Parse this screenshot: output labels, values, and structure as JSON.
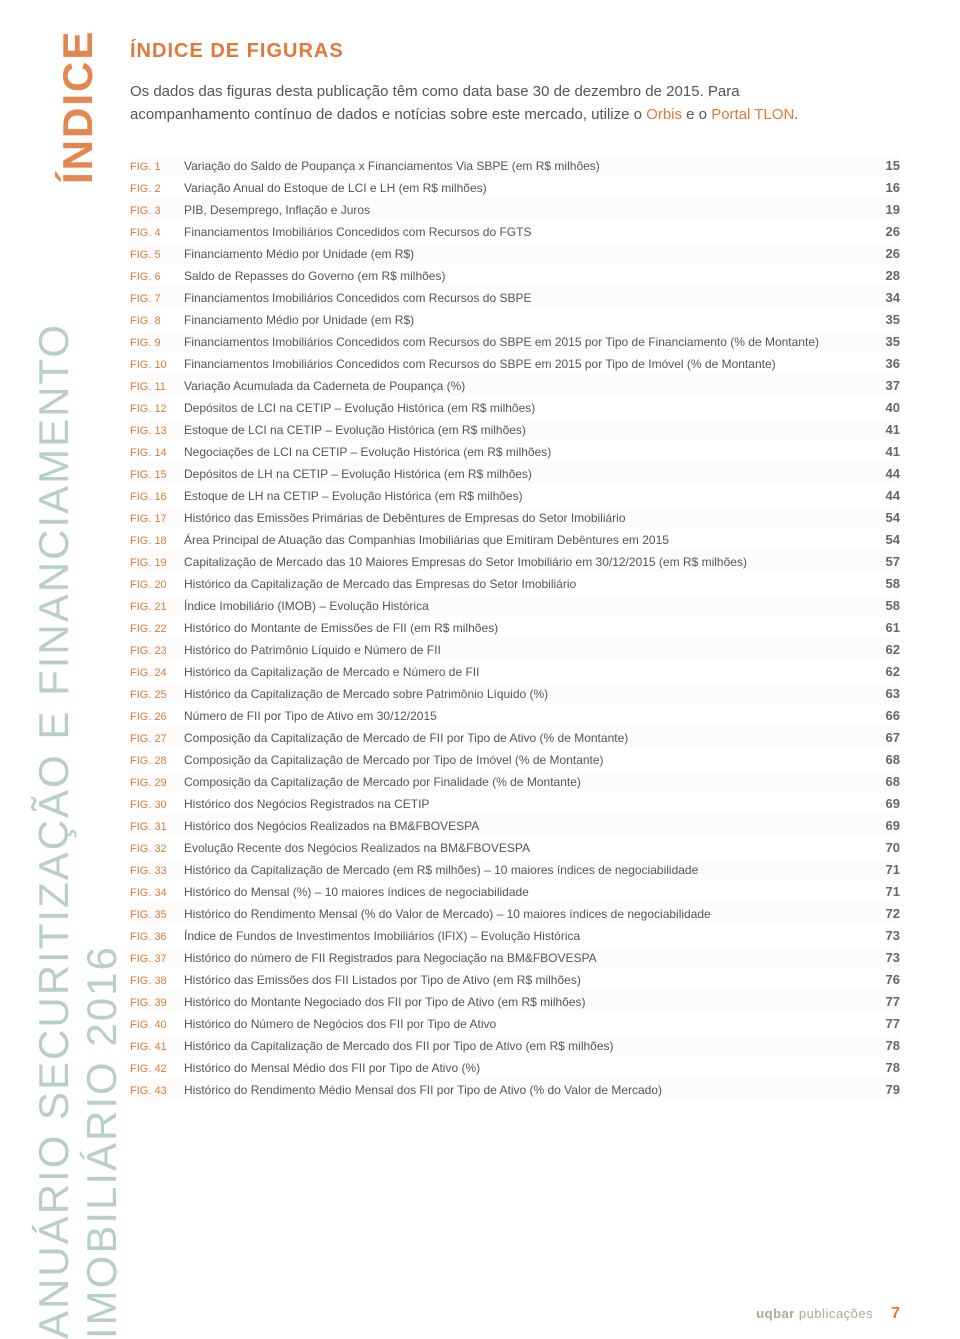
{
  "colors": {
    "accent_orange": "#e07a3a",
    "sidebar_green": "#b7cfc5",
    "text_body": "#555555",
    "brand_tan": "#b0a890",
    "background": "#ffffff"
  },
  "typography": {
    "sidebar_fontsize": 42,
    "heading_fontsize": 20,
    "intro_fontsize": 15,
    "row_fontsize": 12
  },
  "sidebar": {
    "main": "ANUÁRIO SECURITIZAÇÃO E FINANCIAMENTO IMOBILIÁRIO 2016",
    "sub": "ÍNDICE"
  },
  "heading": "ÍNDICE DE FIGURAS",
  "intro": {
    "p1a": "Os dados das figuras desta publicação têm como data base 30 de dezembro de 2015. Para acompanhamento contínuo de dados e notícias sobre este mercado, utilize o ",
    "link1": "Orbis",
    "mid": " e o ",
    "link2": "Portal TLON",
    "end": "."
  },
  "figures": [
    {
      "n": "FIG. 1",
      "d": "Variação do Saldo de Poupança x Financiamentos Via SBPE (em R$ milhões)",
      "p": "15"
    },
    {
      "n": "FIG. 2",
      "d": "Variação Anual do Estoque de LCI e LH (em R$ milhões)",
      "p": "16"
    },
    {
      "n": "FIG. 3",
      "d": "PIB, Desemprego, Inflação e Juros",
      "p": "19"
    },
    {
      "n": "FIG. 4",
      "d": "Financiamentos Imobiliários Concedidos com Recursos do FGTS",
      "p": "26"
    },
    {
      "n": "FIG. 5",
      "d": "Financiamento Médio por Unidade (em R$)",
      "p": "26"
    },
    {
      "n": "FIG. 6",
      "d": "Saldo de Repasses do Governo (em R$ milhões)",
      "p": "28"
    },
    {
      "n": "FIG. 7",
      "d": "Financiamentos Imobiliários Concedidos com Recursos do SBPE",
      "p": "34"
    },
    {
      "n": "FIG. 8",
      "d": "Financiamento Médio por Unidade (em R$)",
      "p": "35"
    },
    {
      "n": "FIG. 9",
      "d": "Financiamentos Imobiliários Concedidos com Recursos do SBPE em 2015 por Tipo de Financiamento (% de Montante)",
      "p": "35"
    },
    {
      "n": "FIG. 10",
      "d": "Financiamentos Imobiliários Concedidos com Recursos do SBPE em 2015 por Tipo de Imóvel (% de Montante)",
      "p": "36"
    },
    {
      "n": "FIG. 11",
      "d": "Variação Acumulada da Caderneta de Poupança (%)",
      "p": "37"
    },
    {
      "n": "FIG. 12",
      "d": "Depósitos de LCI na CETIP – Evolução Histórica (em R$ milhões)",
      "p": "40"
    },
    {
      "n": "FIG. 13",
      "d": "Estoque de LCI na CETIP – Evolução Histórica (em R$ milhões)",
      "p": "41"
    },
    {
      "n": "FIG. 14",
      "d": "Negociações de LCI na CETIP – Evolução Histórica (em R$ milhões)",
      "p": "41"
    },
    {
      "n": "FIG. 15",
      "d": "Depósitos de LH na CETIP – Evolução Histórica (em R$ milhões)",
      "p": "44"
    },
    {
      "n": "FIG. 16",
      "d": "Estoque de LH na CETIP – Evolução Histórica (em R$ milhões)",
      "p": "44"
    },
    {
      "n": "FIG. 17",
      "d": "Histórico das Emissões Primárias de Debêntures de Empresas do Setor Imobiliário",
      "p": "54"
    },
    {
      "n": "FIG. 18",
      "d": "Área Principal de Atuação das Companhias Imobiliárias que Emitiram Debêntures em 2015",
      "p": "54"
    },
    {
      "n": "FIG. 19",
      "d": "Capitalização de Mercado das 10 Maiores Empresas do Setor Imobiliário em 30/12/2015 (em R$ milhões)",
      "p": "57"
    },
    {
      "n": "FIG. 20",
      "d": "Histórico da Capitalização de Mercado das Empresas do Setor Imobiliário",
      "p": "58"
    },
    {
      "n": "FIG. 21",
      "d": "Índice Imobiliário (IMOB) – Evolução Histórica",
      "p": "58"
    },
    {
      "n": "FIG. 22",
      "d": "Histórico do Montante de Emissões de FII (em R$ milhões)",
      "p": "61"
    },
    {
      "n": "FIG. 23",
      "d": "Histórico do Patrimônio Líquido e Número de FII",
      "p": "62"
    },
    {
      "n": "FIG. 24",
      "d": "Histórico da Capitalização de Mercado e Número de FII",
      "p": "62"
    },
    {
      "n": "FIG. 25",
      "d": "Histórico da Capitalização de Mercado sobre Patrimônio Líquido (%)",
      "p": "63"
    },
    {
      "n": "FIG. 26",
      "d": "Número de FII por Tipo de Ativo em 30/12/2015",
      "p": "66"
    },
    {
      "n": "FIG. 27",
      "d": "Composição da Capitalização de Mercado de FII por Tipo de Ativo (% de Montante)",
      "p": "67"
    },
    {
      "n": "FIG. 28",
      "d": "Composição da Capitalização de Mercado por Tipo de Imóvel (% de Montante)",
      "p": "68"
    },
    {
      "n": "FIG. 29",
      "d": "Composição da Capitalização de Mercado por Finalidade (% de Montante)",
      "p": "68"
    },
    {
      "n": "FIG. 30",
      "d": "Histórico dos Negócios Registrados na CETIP",
      "p": "69"
    },
    {
      "n": "FIG. 31",
      "d": "Histórico dos Negócios Realizados na BM&FBOVESPA",
      "p": "69"
    },
    {
      "n": "FIG. 32",
      "d": "Evolução Recente dos Negócios Realizados na BM&FBOVESPA",
      "p": "70"
    },
    {
      "n": "FIG. 33",
      "d": "Histórico da Capitalização de Mercado (em R$ milhões) – 10 maiores índices de negociabilidade",
      "p": "71"
    },
    {
      "n": "FIG. 34",
      "d": "Histórico do Mensal (%) – 10 maiores índices de negociabilidade",
      "p": "71"
    },
    {
      "n": "FIG. 35",
      "d": "Histórico do Rendimento Mensal (% do Valor de Mercado) – 10 maiores índices de negociabilidade",
      "p": "72"
    },
    {
      "n": "FIG. 36",
      "d": "Índice de Fundos de Investimentos Imobiliários (IFIX) – Evolução Histórica",
      "p": "73"
    },
    {
      "n": "FIG. 37",
      "d": "Histórico do número de FII Registrados para Negociação na BM&FBOVESPA",
      "p": "73"
    },
    {
      "n": "FIG. 38",
      "d": "Histórico das Emissões dos FII Listados por Tipo de Ativo (em R$ milhões)",
      "p": "76"
    },
    {
      "n": "FIG. 39",
      "d": "Histórico do Montante Negociado dos FII por Tipo de Ativo (em R$ milhões)",
      "p": "77"
    },
    {
      "n": "FIG. 40",
      "d": "Histórico do Número de Negócios dos FII por Tipo de Ativo",
      "p": "77"
    },
    {
      "n": "FIG. 41",
      "d": "Histórico da Capitalização de Mercado dos FII por Tipo de Ativo (em R$ milhões)",
      "p": "78"
    },
    {
      "n": "FIG. 42",
      "d": "Histórico do Mensal Médio dos FII por Tipo de Ativo (%)",
      "p": "78"
    },
    {
      "n": "FIG. 43",
      "d": "Histórico do Rendimento Médio Mensal dos FII por Tipo de Ativo (% do Valor de Mercado)",
      "p": "79"
    }
  ],
  "footer": {
    "brand_bold": "uqbar",
    "brand_light": " publicações",
    "page": "7"
  }
}
